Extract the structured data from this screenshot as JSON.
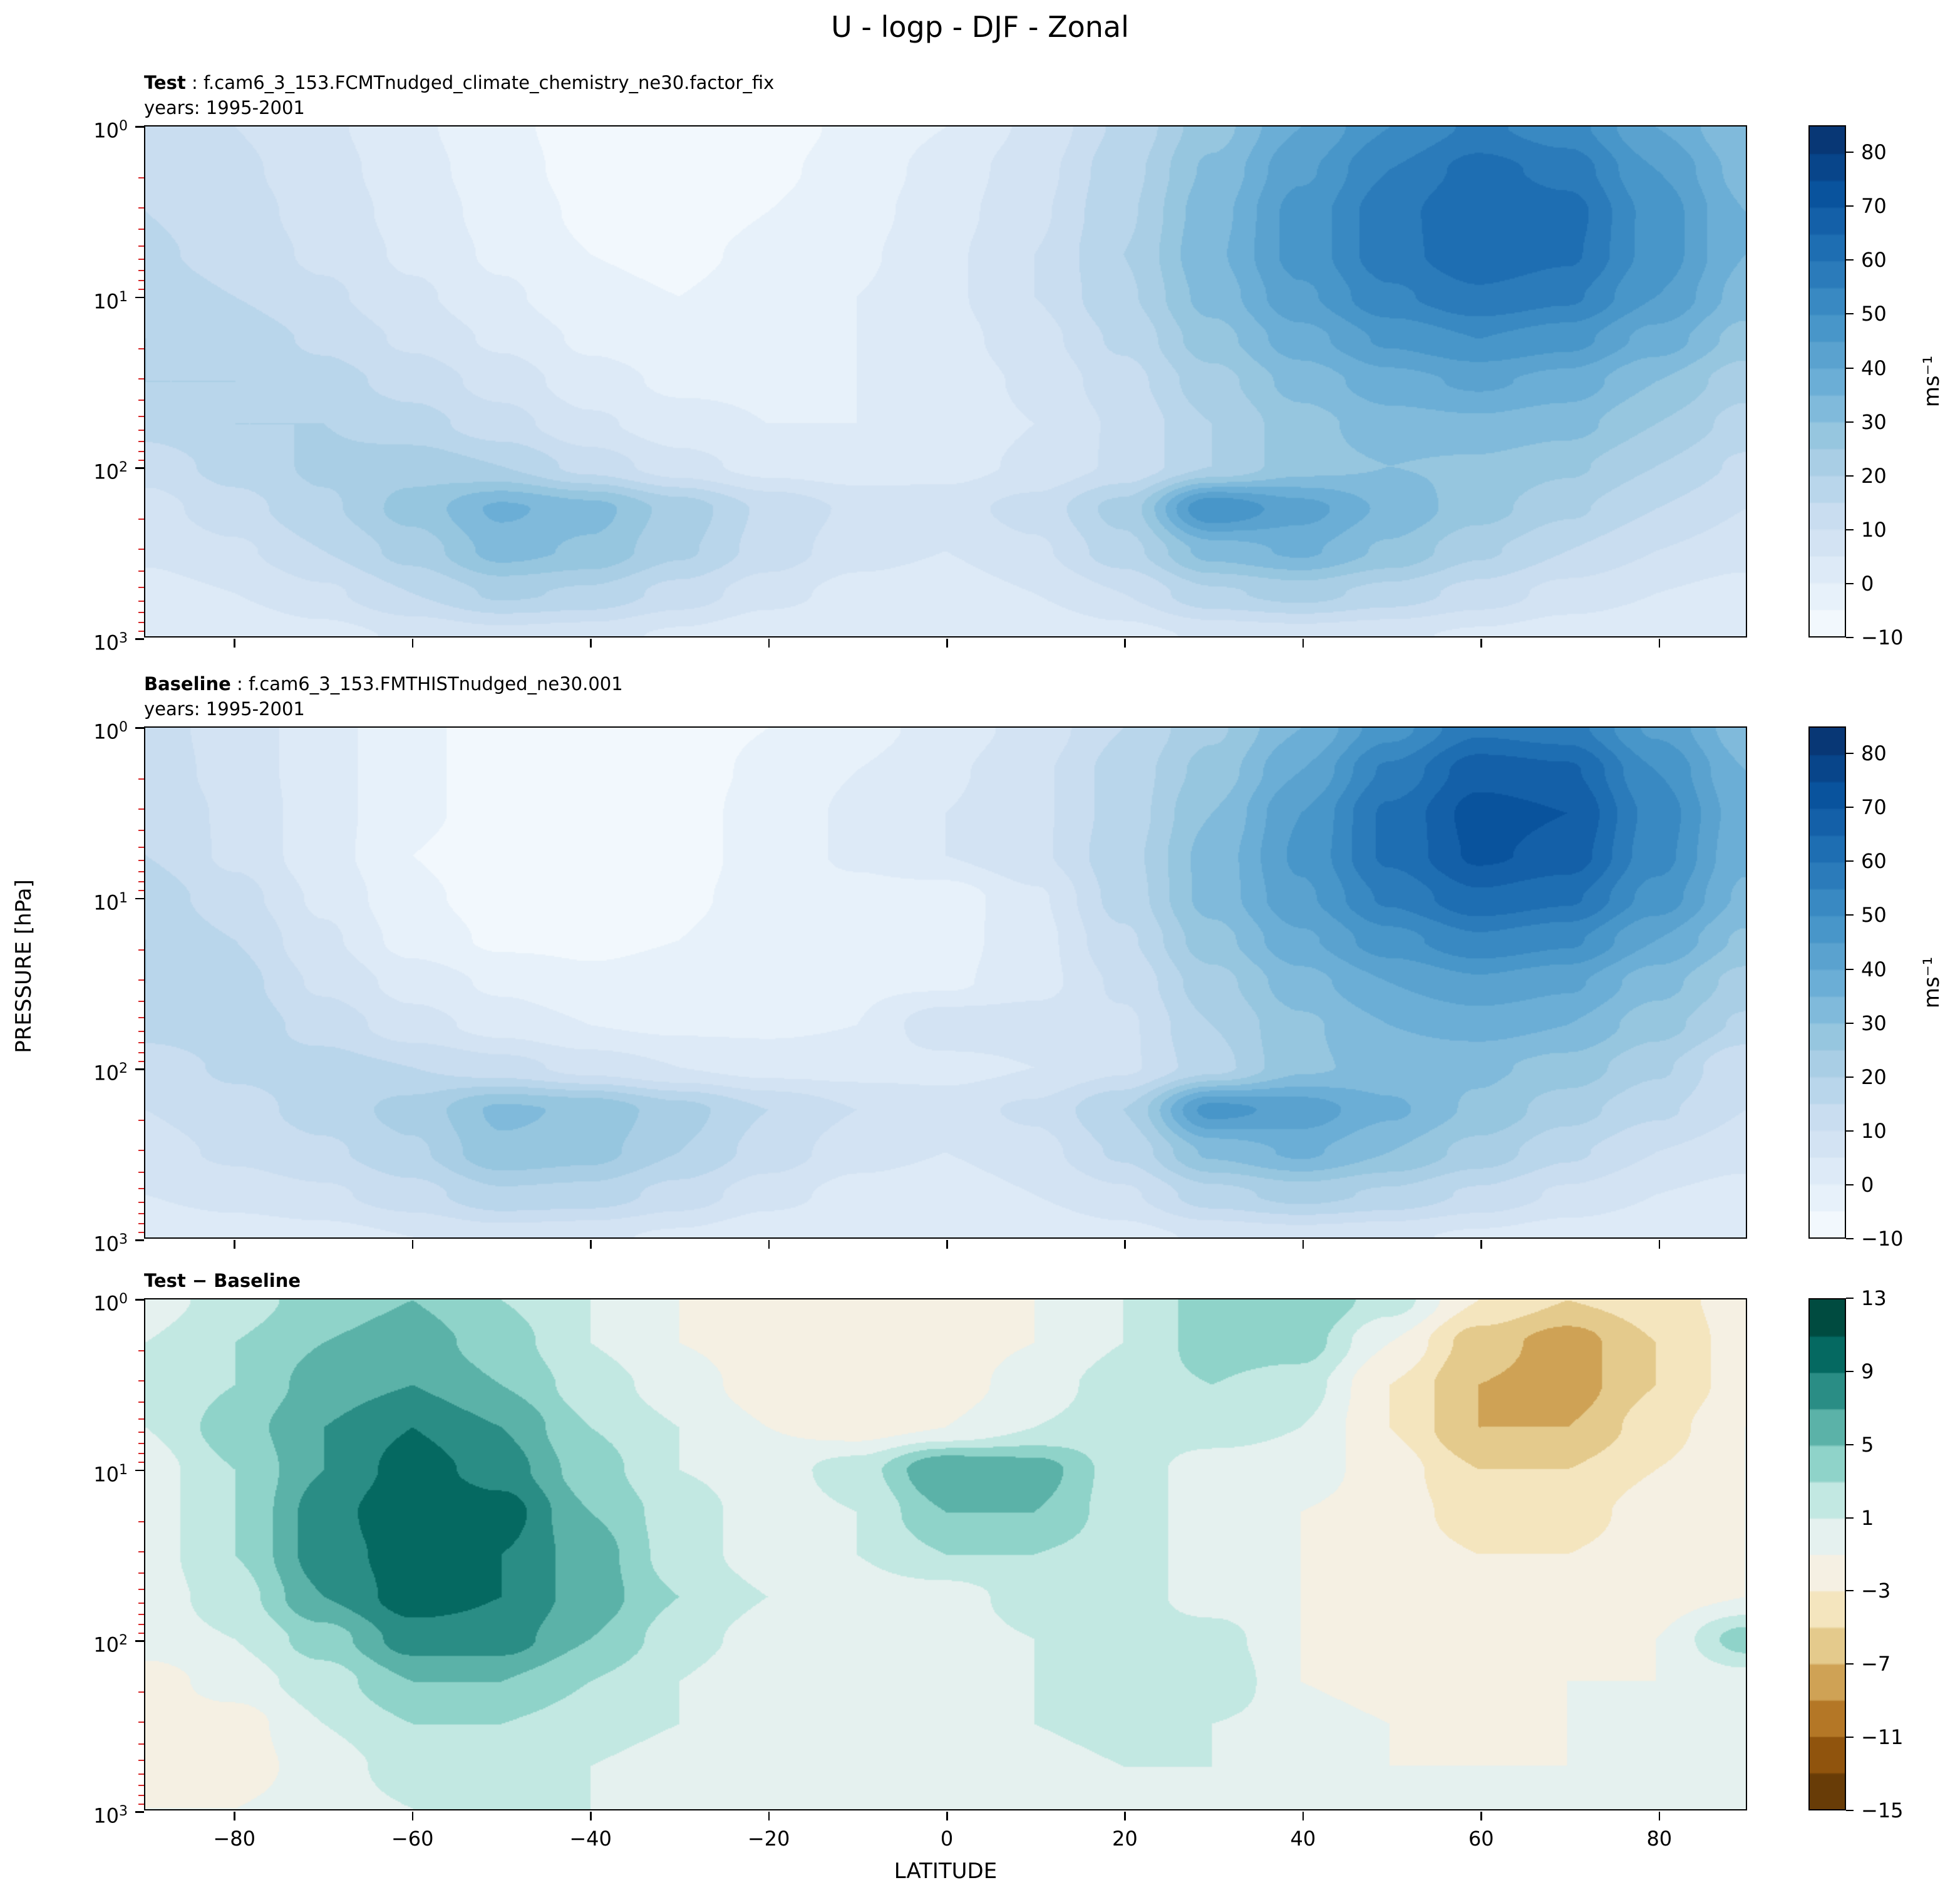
{
  "title": "U - logp - DJF - Zonal",
  "axes": {
    "xlabel": "LATITUDE",
    "ylabel": "PRESSURE [hPa]",
    "x_ticks": [
      -80,
      -60,
      -40,
      -20,
      0,
      20,
      40,
      60,
      80
    ],
    "x_range": [
      -90,
      90
    ],
    "y_tick_exponents": [
      0,
      1,
      2,
      3
    ],
    "y_range_hpa": [
      1,
      1000
    ],
    "y_scale": "log",
    "minor_tick_color": "#d62728"
  },
  "panels": [
    {
      "id": "test",
      "label_bold": "Test",
      "label_rest": " : f.cam6_3_153.FCMTnudged_climate_chemistry_ne30.factor_fix",
      "subtitle": "years: 1995-2001"
    },
    {
      "id": "baseline",
      "label_bold": "Baseline",
      "label_rest": " : f.cam6_3_153.FMTHISTnudged_ne30.001",
      "subtitle": "years: 1995-2001"
    },
    {
      "id": "diff",
      "label_bold": "Test − Baseline",
      "label_rest": "",
      "subtitle": ""
    }
  ],
  "colorbars": {
    "wind": {
      "label": "ms⁻¹",
      "ticks": [
        -10,
        0,
        10,
        20,
        30,
        40,
        50,
        60,
        70,
        80
      ],
      "vmin": -10,
      "vmax": 85,
      "step": 5,
      "anchors": [
        "#f7fbff",
        "#deebf7",
        "#c6dbef",
        "#9ecae1",
        "#6baed6",
        "#4292c6",
        "#2171b5",
        "#08519c",
        "#08306b"
      ]
    },
    "diff": {
      "label": "",
      "ticks": [
        13,
        9,
        5,
        1,
        -3,
        -7,
        -11,
        -15
      ],
      "vmin": -15,
      "vmax": 13,
      "step": 2,
      "anchors": [
        "#543005",
        "#8c510a",
        "#bf812d",
        "#dfc27d",
        "#f6e8c3",
        "#f5f5f5",
        "#c7eae5",
        "#80cdc1",
        "#35978f",
        "#01665e",
        "#003c30"
      ]
    }
  },
  "chart_data": {
    "type": "heatmap",
    "subtype": "filled-contour",
    "title": "U - logp - DJF - Zonal",
    "xlabel": "LATITUDE",
    "ylabel": "PRESSURE [hPa]",
    "units": "ms⁻¹",
    "x_lat": [
      -90,
      -80,
      -70,
      -60,
      -50,
      -40,
      -30,
      -20,
      -10,
      0,
      10,
      20,
      30,
      40,
      50,
      60,
      70,
      80,
      90
    ],
    "y_pressure_hpa": [
      1,
      1.8,
      3.2,
      5.6,
      10,
      18,
      32,
      56,
      100,
      180,
      320,
      560,
      1000
    ],
    "y_scale": "log",
    "contour_levels_wind": {
      "min": -10,
      "max": 85,
      "step": 5
    },
    "contour_levels_diff": {
      "min": -15,
      "max": 13,
      "step": 2
    },
    "series": [
      {
        "name": "Test (1995-2001)",
        "values": [
          [
            12,
            10,
            6,
            1,
            -4,
            -7,
            -8,
            -7,
            -4,
            0,
            6,
            16,
            28,
            40,
            50,
            56,
            52,
            40,
            30
          ],
          [
            14,
            11,
            7,
            2,
            -3,
            -7,
            -8,
            -6,
            -3,
            2,
            8,
            18,
            31,
            44,
            55,
            62,
            58,
            45,
            33
          ],
          [
            15,
            12,
            8,
            3,
            -2,
            -6,
            -7,
            -5,
            -2,
            3,
            9,
            19,
            33,
            47,
            58,
            65,
            62,
            48,
            35
          ],
          [
            16,
            13,
            9,
            4,
            -1,
            -5,
            -6,
            -4,
            -1,
            4,
            10,
            20,
            34,
            47,
            58,
            64,
            61,
            48,
            35
          ],
          [
            18,
            15,
            11,
            6,
            1,
            -4,
            -5,
            -3,
            0,
            4,
            10,
            19,
            32,
            44,
            54,
            59,
            56,
            45,
            33
          ],
          [
            20,
            18,
            14,
            9,
            4,
            -1,
            -3,
            -2,
            0,
            3,
            8,
            16,
            28,
            38,
            46,
            50,
            47,
            38,
            28
          ],
          [
            20,
            20,
            17,
            13,
            8,
            2,
            -1,
            -1,
            0,
            2,
            6,
            13,
            23,
            32,
            38,
            41,
            38,
            30,
            22
          ],
          [
            17,
            20,
            20,
            17,
            12,
            6,
            2,
            0,
            0,
            2,
            5,
            11,
            20,
            28,
            33,
            34,
            32,
            25,
            18
          ],
          [
            12,
            17,
            21,
            23,
            20,
            13,
            7,
            3,
            2,
            3,
            6,
            11,
            20,
            28,
            30,
            29,
            26,
            20,
            14
          ],
          [
            8,
            13,
            19,
            27,
            36,
            32,
            23,
            14,
            9,
            8,
            12,
            22,
            50,
            42,
            34,
            27,
            21,
            15,
            10
          ],
          [
            6,
            9,
            15,
            22,
            32,
            29,
            21,
            13,
            7,
            5,
            9,
            18,
            32,
            36,
            29,
            21,
            15,
            10,
            7
          ],
          [
            3,
            5,
            9,
            15,
            21,
            19,
            13,
            7,
            3,
            2,
            5,
            10,
            19,
            22,
            18,
            13,
            8,
            5,
            3
          ],
          [
            0,
            1,
            3,
            6,
            8,
            7,
            4,
            1,
            0,
            0,
            1,
            3,
            6,
            7,
            6,
            4,
            2,
            1,
            0
          ]
        ]
      },
      {
        "name": "Baseline (1995-2001)",
        "values": [
          [
            12,
            8,
            2,
            -4,
            -7,
            -8,
            -7,
            -5,
            -2,
            2,
            7,
            15,
            24,
            35,
            48,
            59,
            57,
            44,
            32
          ],
          [
            13,
            8,
            2,
            -4,
            -7,
            -8,
            -7,
            -4,
            0,
            4,
            9,
            17,
            27,
            40,
            56,
            68,
            66,
            50,
            35
          ],
          [
            14,
            9,
            2,
            -4,
            -7,
            -8,
            -7,
            -3,
            1,
            5,
            9,
            17,
            30,
            45,
            61,
            72,
            70,
            53,
            37
          ],
          [
            15,
            9,
            2,
            -5,
            -8,
            -8,
            -7,
            -3,
            1,
            5,
            9,
            18,
            32,
            46,
            61,
            71,
            68,
            52,
            36
          ],
          [
            18,
            12,
            4,
            -4,
            -7,
            -8,
            -6,
            -3,
            -2,
            -3,
            4,
            17,
            32,
            44,
            56,
            64,
            61,
            48,
            34
          ],
          [
            20,
            15,
            6,
            -2,
            -6,
            -6,
            -5,
            -2,
            -1,
            -2,
            3,
            14,
            28,
            39,
            48,
            54,
            51,
            40,
            29
          ],
          [
            20,
            17,
            9,
            3,
            -1,
            -4,
            -3,
            -1,
            -1,
            -1,
            3,
            11,
            23,
            33,
            40,
            44,
            41,
            32,
            23
          ],
          [
            17,
            18,
            13,
            7,
            3,
            0,
            -1,
            -1,
            0,
            9,
            8,
            9,
            20,
            29,
            35,
            37,
            35,
            27,
            19
          ],
          [
            12,
            16,
            17,
            15,
            12,
            8,
            5,
            3,
            3,
            3,
            5,
            9,
            18,
            29,
            32,
            31,
            28,
            21,
            10
          ],
          [
            10,
            13,
            17,
            22,
            31,
            29,
            22,
            15,
            10,
            8,
            11,
            20,
            47,
            43,
            36,
            29,
            22,
            16,
            10
          ],
          [
            8,
            11,
            14,
            19,
            29,
            27,
            20,
            13,
            7,
            5,
            8,
            16,
            31,
            36,
            30,
            23,
            16,
            10,
            7
          ],
          [
            5,
            7,
            9,
            13,
            19,
            18,
            13,
            7,
            3,
            2,
            5,
            9,
            18,
            22,
            19,
            14,
            9,
            5,
            3
          ],
          [
            1,
            2,
            3,
            5,
            7,
            6,
            4,
            1,
            0,
            0,
            1,
            3,
            6,
            7,
            6,
            4,
            2,
            1,
            0
          ]
        ]
      },
      {
        "name": "Test − Baseline",
        "values": [
          [
            0,
            2,
            4,
            5,
            3,
            1,
            -1,
            -2,
            -2,
            -2,
            -1,
            1,
            4,
            5,
            2,
            -3,
            -5,
            -4,
            -2
          ],
          [
            1,
            3,
            5,
            6,
            4,
            1,
            -1,
            -2,
            -3,
            -2,
            -1,
            1,
            4,
            4,
            -1,
            -6,
            -8,
            -5,
            -2
          ],
          [
            1,
            3,
            6,
            7,
            5,
            2,
            0,
            -2,
            -3,
            -2,
            0,
            2,
            3,
            2,
            -3,
            -7,
            -8,
            -5,
            -2
          ],
          [
            1,
            4,
            7,
            9,
            7,
            3,
            1,
            -1,
            -2,
            -1,
            1,
            2,
            2,
            1,
            -3,
            -7,
            -7,
            -4,
            -1
          ],
          [
            0,
            3,
            7,
            10,
            8,
            4,
            1,
            0,
            2,
            7,
            6,
            2,
            0,
            0,
            -2,
            -5,
            -5,
            -3,
            -1
          ],
          [
            0,
            3,
            8,
            11,
            10,
            5,
            2,
            0,
            1,
            5,
            5,
            2,
            0,
            -1,
            -2,
            -4,
            -4,
            -2,
            -1
          ],
          [
            0,
            3,
            8,
            10,
            9,
            6,
            2,
            0,
            1,
            3,
            3,
            2,
            0,
            -1,
            -2,
            -3,
            -3,
            -2,
            -1
          ],
          [
            0,
            2,
            7,
            10,
            9,
            6,
            3,
            1,
            0,
            0,
            2,
            2,
            0,
            -1,
            -2,
            -3,
            -3,
            -2,
            -1
          ],
          [
            0,
            1,
            4,
            8,
            8,
            5,
            2,
            0,
            -1,
            0,
            1,
            2,
            2,
            -1,
            -2,
            -2,
            -2,
            -1,
            4
          ],
          [
            -2,
            0,
            2,
            5,
            5,
            3,
            1,
            -1,
            -1,
            0,
            1,
            2,
            3,
            -1,
            -2,
            -2,
            -1,
            -1,
            0
          ],
          [
            -2,
            -2,
            1,
            3,
            3,
            2,
            1,
            0,
            0,
            0,
            1,
            2,
            1,
            0,
            -1,
            -2,
            -1,
            0,
            0
          ],
          [
            -2,
            -2,
            0,
            2,
            2,
            1,
            0,
            0,
            0,
            0,
            0,
            1,
            1,
            0,
            -1,
            -1,
            -1,
            0,
            0
          ],
          [
            -1,
            -1,
            0,
            1,
            1,
            1,
            0,
            0,
            0,
            0,
            0,
            0,
            0,
            0,
            0,
            0,
            0,
            0,
            0
          ]
        ]
      }
    ]
  }
}
